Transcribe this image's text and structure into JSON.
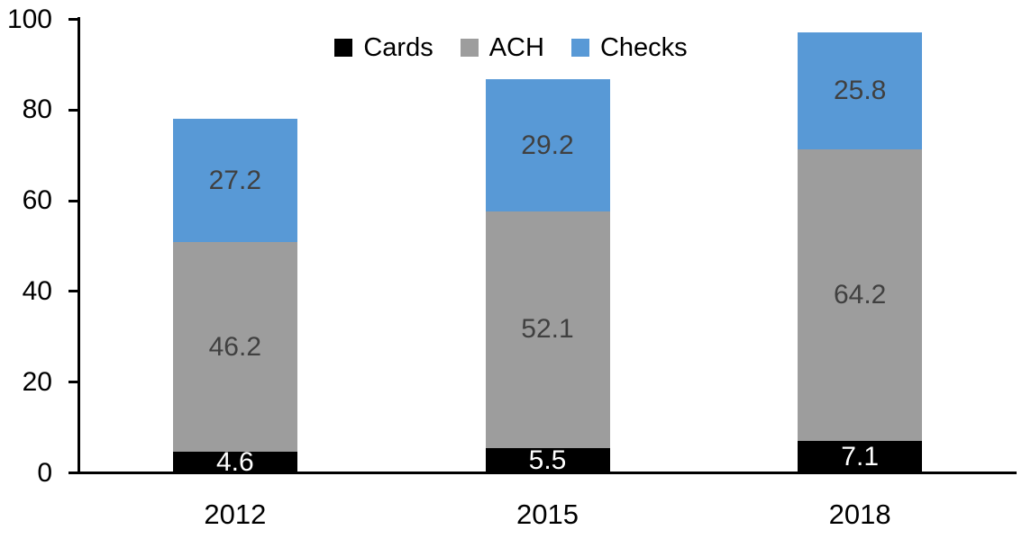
{
  "chart_data": {
    "type": "bar",
    "stacked": true,
    "title": "",
    "categories": [
      "2012",
      "2015",
      "2018"
    ],
    "series": [
      {
        "name": "Cards",
        "color": "#000000",
        "label_color": "#ffffff",
        "values": [
          4.6,
          5.5,
          7.1
        ]
      },
      {
        "name": "ACH",
        "color": "#9d9d9d",
        "label_color": "#404040",
        "values": [
          46.2,
          52.1,
          64.2
        ]
      },
      {
        "name": "Checks",
        "color": "#5899d6",
        "label_color": "#404040",
        "values": [
          27.2,
          29.2,
          25.8
        ]
      }
    ],
    "ylim": [
      0,
      100
    ],
    "yticks": [
      0,
      20,
      40,
      60,
      80,
      100
    ],
    "xlabel": "",
    "ylabel": "",
    "grid": false,
    "legend_position": "top-center",
    "data_labels_visible": true,
    "axis_color": "#000000"
  }
}
